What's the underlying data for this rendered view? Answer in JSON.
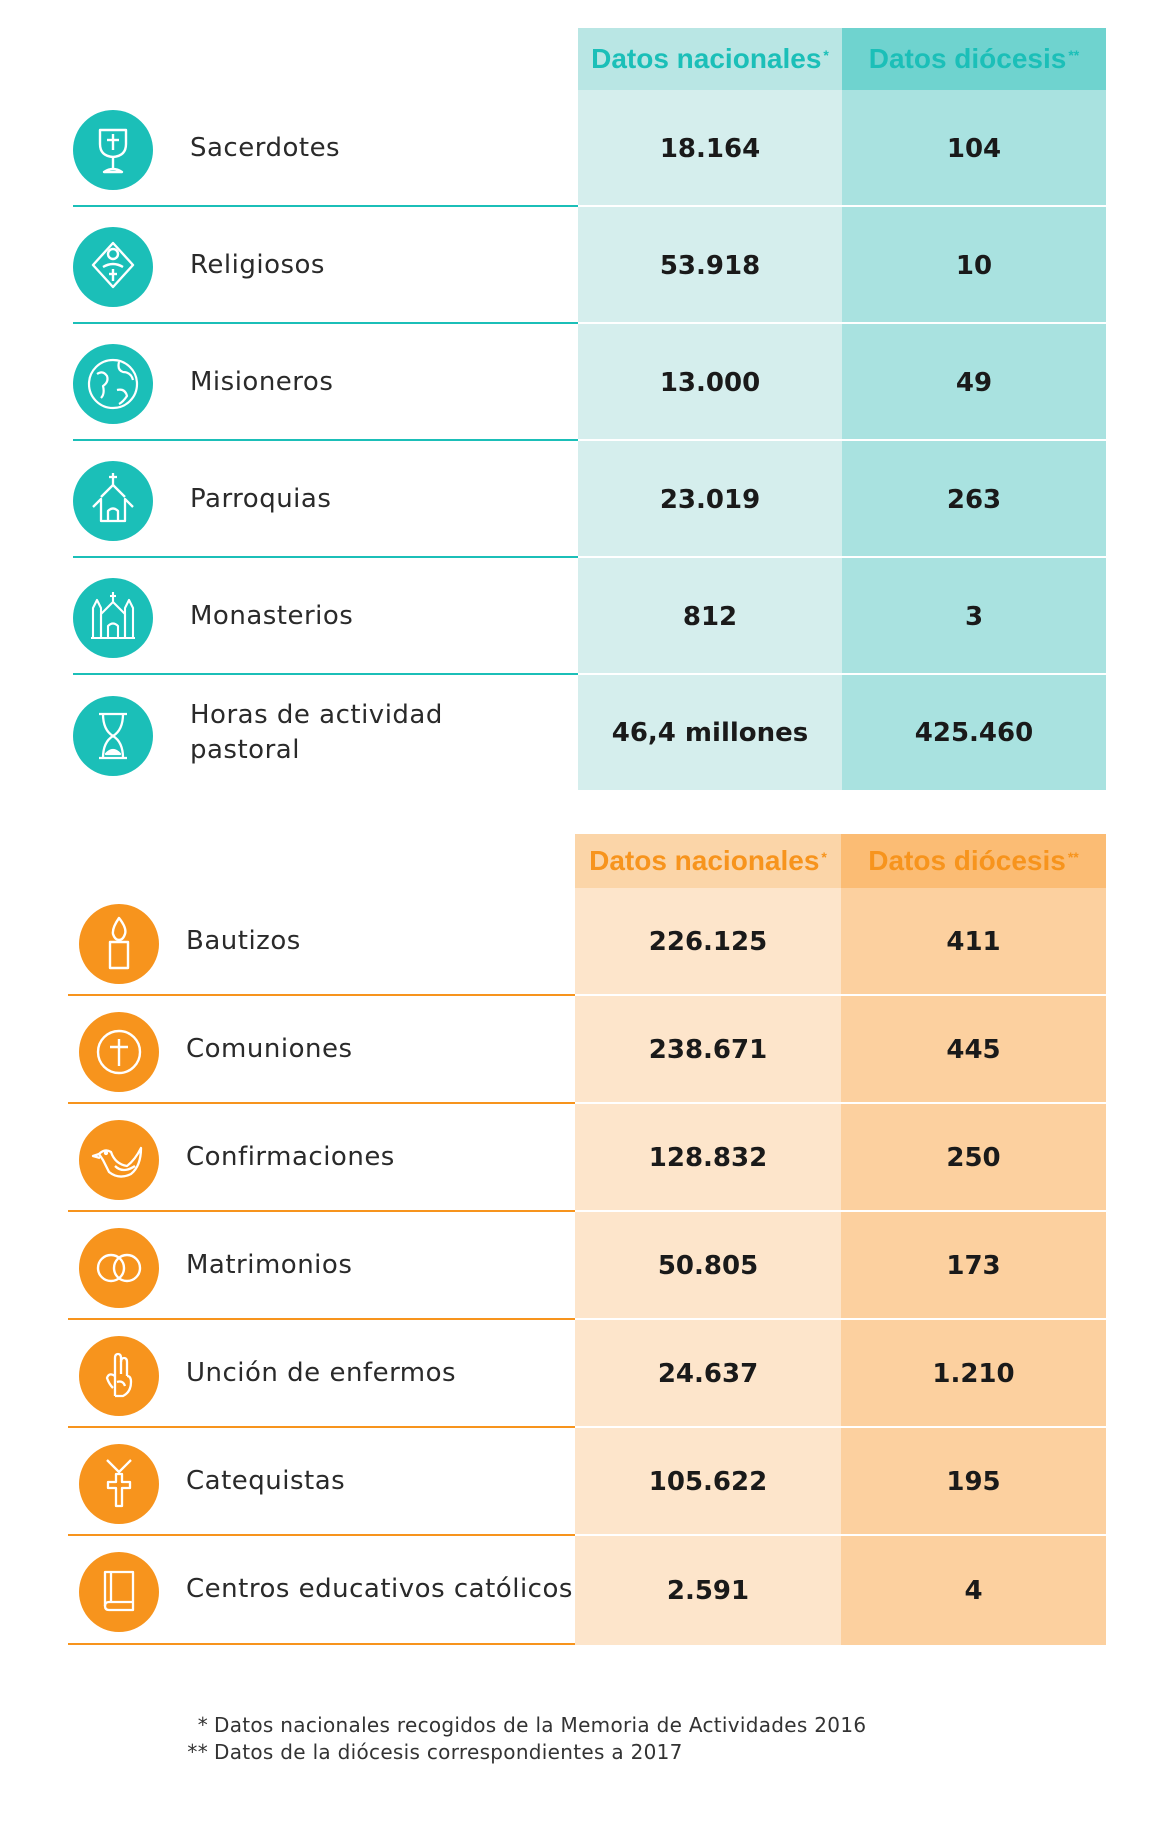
{
  "clergy_table": {
    "accent": "#1bbfb8",
    "col_nacional_bg": "#d5eeed",
    "col_diocesis_bg": "#a9e2e0",
    "header_nacional_bg": "#b9e6e4",
    "header_diocesis_bg": "#6fd3cf",
    "header_nacional": "Datos nacionales",
    "header_nacional_mark": "*",
    "header_diocesis": "Datos diócesis",
    "header_diocesis_mark": "**",
    "rows": [
      {
        "icon": "chalice-icon",
        "label": "Sacerdotes",
        "nacional": "18.164",
        "diocesis": "104"
      },
      {
        "icon": "nun-icon",
        "label": "Religiosos",
        "nacional": "53.918",
        "diocesis": "10"
      },
      {
        "icon": "globe-icon",
        "label": "Misioneros",
        "nacional": "13.000",
        "diocesis": "49"
      },
      {
        "icon": "church-icon",
        "label": "Parroquias",
        "nacional": "23.019",
        "diocesis": "263"
      },
      {
        "icon": "monastery-icon",
        "label": "Monasterios",
        "nacional": "812",
        "diocesis": "3"
      },
      {
        "icon": "hourglass-icon",
        "label": "Horas de actividad",
        "label_line2": "pastoral",
        "nacional": "46,4 millones",
        "diocesis": "425.460"
      }
    ]
  },
  "sacraments_table": {
    "accent": "#f7941d",
    "col_nacional_bg": "#fde5cb",
    "col_diocesis_bg": "#fcd09f",
    "header_nacional_bg": "#fbd5a8",
    "header_diocesis_bg": "#fbbc74",
    "header_nacional": "Datos nacionales",
    "header_nacional_mark": "*",
    "header_diocesis": "Datos diócesis",
    "header_diocesis_mark": "**",
    "rows": [
      {
        "icon": "candle-icon",
        "label": "Bautizos",
        "nacional": "226.125",
        "diocesis": "411"
      },
      {
        "icon": "host-cross-icon",
        "label": "Comuniones",
        "nacional": "238.671",
        "diocesis": "445"
      },
      {
        "icon": "dove-icon",
        "label": "Confirmaciones",
        "nacional": "128.832",
        "diocesis": "250"
      },
      {
        "icon": "rings-icon",
        "label": "Matrimonios",
        "nacional": "50.805",
        "diocesis": "173"
      },
      {
        "icon": "blessing-hand-icon",
        "label": "Unción de enfermos",
        "nacional": "24.637",
        "diocesis": "1.210"
      },
      {
        "icon": "cross-pendant-icon",
        "label": "Catequistas",
        "nacional": "105.622",
        "diocesis": "195"
      },
      {
        "icon": "book-icon",
        "label": "Centros educativos católicos",
        "nacional": "2.591",
        "diocesis": "4"
      }
    ]
  },
  "footnotes": [
    {
      "mark": "*",
      "text": "Datos nacionales recogidos de la Memoria de Actividades 2016"
    },
    {
      "mark": "**",
      "text": "Datos de la diócesis correspondientes a 2017"
    }
  ]
}
